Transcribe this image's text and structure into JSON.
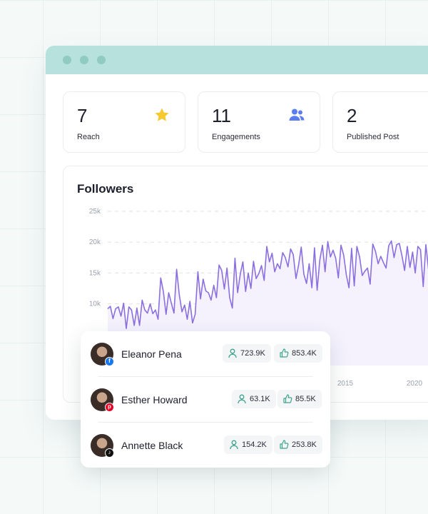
{
  "stats": [
    {
      "value": "7",
      "label": "Reach",
      "icon": "star-icon"
    },
    {
      "value": "11",
      "label": "Engagements",
      "icon": "users-icon"
    },
    {
      "value": "2",
      "label": "Published Post",
      "icon": "post-icon"
    }
  ],
  "chart": {
    "title": "Followers"
  },
  "chart_data": {
    "type": "area",
    "title": "Followers",
    "yticks": [
      "25k",
      "20k",
      "15k",
      "10k"
    ],
    "xticks": [
      "2015",
      "2020"
    ],
    "ylim": [
      0,
      25000
    ],
    "grid": true,
    "color": "#8b6fe0",
    "values": [
      9200,
      9600,
      7600,
      9200,
      9500,
      8000,
      10100,
      6000,
      9500,
      9000,
      6500,
      9300,
      6500,
      10600,
      9000,
      8500,
      10000,
      8400,
      9000,
      7500,
      14200,
      12000,
      8300,
      11800,
      10100,
      8500,
      15600,
      11500,
      8700,
      9800,
      7500,
      10400,
      6900,
      8300,
      15200,
      10800,
      14000,
      12100,
      11800,
      10600,
      13000,
      11000,
      16300,
      15400,
      12400,
      15800,
      11000,
      9300,
      17400,
      11800,
      14800,
      16800,
      12000,
      15000,
      12500,
      16900,
      14100,
      14900,
      16200,
      13800,
      19300,
      16800,
      18200,
      15200,
      16500,
      15700,
      18300,
      17500,
      16000,
      18900,
      18000,
      14100,
      16300,
      19200,
      14800,
      13300,
      16500,
      12600,
      19100,
      12200,
      17100,
      19500,
      15200,
      20100,
      17600,
      18700,
      17400,
      14200,
      19500,
      17900,
      14700,
      12600,
      19000,
      12900,
      19300,
      17600,
      14600,
      15300,
      15800,
      13200,
      19700,
      18500,
      16500,
      17700,
      16700,
      15800,
      19400,
      20200,
      17500,
      19600,
      19800,
      17800,
      15400,
      19300,
      15900,
      18400,
      15000,
      19300,
      18800,
      12800,
      19600,
      15600,
      17700,
      17300,
      17900,
      13200,
      19400,
      18800,
      20600,
      19500,
      21300,
      20400,
      16500,
      19100,
      15100
    ]
  },
  "followers": [
    {
      "name": "Eleanor Pena",
      "network": "facebook",
      "followers": "723.9K",
      "likes": "853.4K"
    },
    {
      "name": "Esther Howard",
      "network": "pinterest",
      "followers": "63.1K",
      "likes": "85.5K"
    },
    {
      "name": "Annette Black",
      "network": "tiktok",
      "followers": "154.2K",
      "likes": "253.8K"
    }
  ],
  "colors": {
    "titlebar": "#b7e1dc",
    "accent_line": "#8b6fe0",
    "star": "#f6c92f",
    "users": "#5b7df0",
    "post": "#3ec7a5",
    "pill_icon": "#3ea58c"
  }
}
